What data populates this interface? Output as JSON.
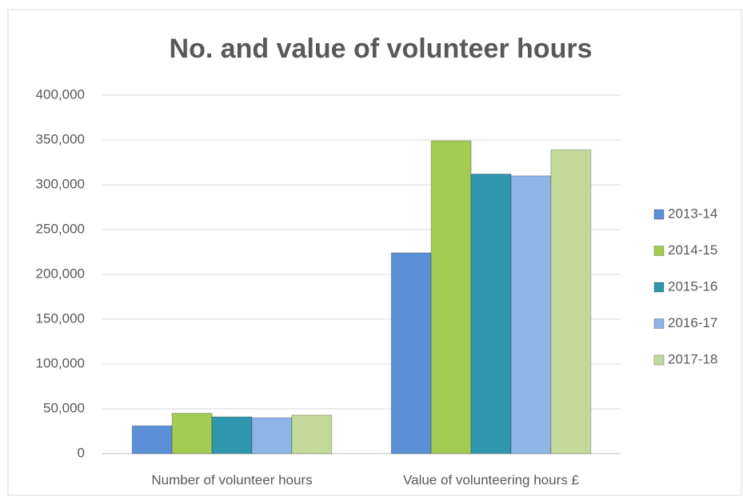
{
  "chart_data": {
    "type": "bar",
    "title": "No. and value of volunteer hours",
    "categories": [
      "Number of volunteer hours",
      "Value of volunteering hours £"
    ],
    "series": [
      {
        "name": "2013-14",
        "color": "#5b8fd6",
        "values": [
          31000,
          224000
        ]
      },
      {
        "name": "2014-15",
        "color": "#a4cc52",
        "values": [
          45000,
          349000
        ]
      },
      {
        "name": "2015-16",
        "color": "#2e97ad",
        "values": [
          41000,
          312000
        ]
      },
      {
        "name": "2016-17",
        "color": "#8fb4e6",
        "values": [
          40000,
          310000
        ]
      },
      {
        "name": "2017-18",
        "color": "#c3d99a",
        "values": [
          43000,
          339000
        ]
      }
    ],
    "ylim": [
      0,
      400000
    ],
    "yticks": [
      0,
      {
        "value": 50000,
        "label": "50,000"
      },
      {
        "value": 100000,
        "label": "100,000"
      },
      {
        "value": 150000,
        "label": "150,000"
      },
      {
        "value": 200000,
        "label": "200,000"
      },
      {
        "value": 250000,
        "label": "250,000"
      },
      {
        "value": 300000,
        "label": "300,000"
      },
      {
        "value": 350000,
        "label": "350,000"
      },
      {
        "value": 400000,
        "label": "400,000"
      }
    ],
    "grid": true,
    "legend": "right"
  }
}
